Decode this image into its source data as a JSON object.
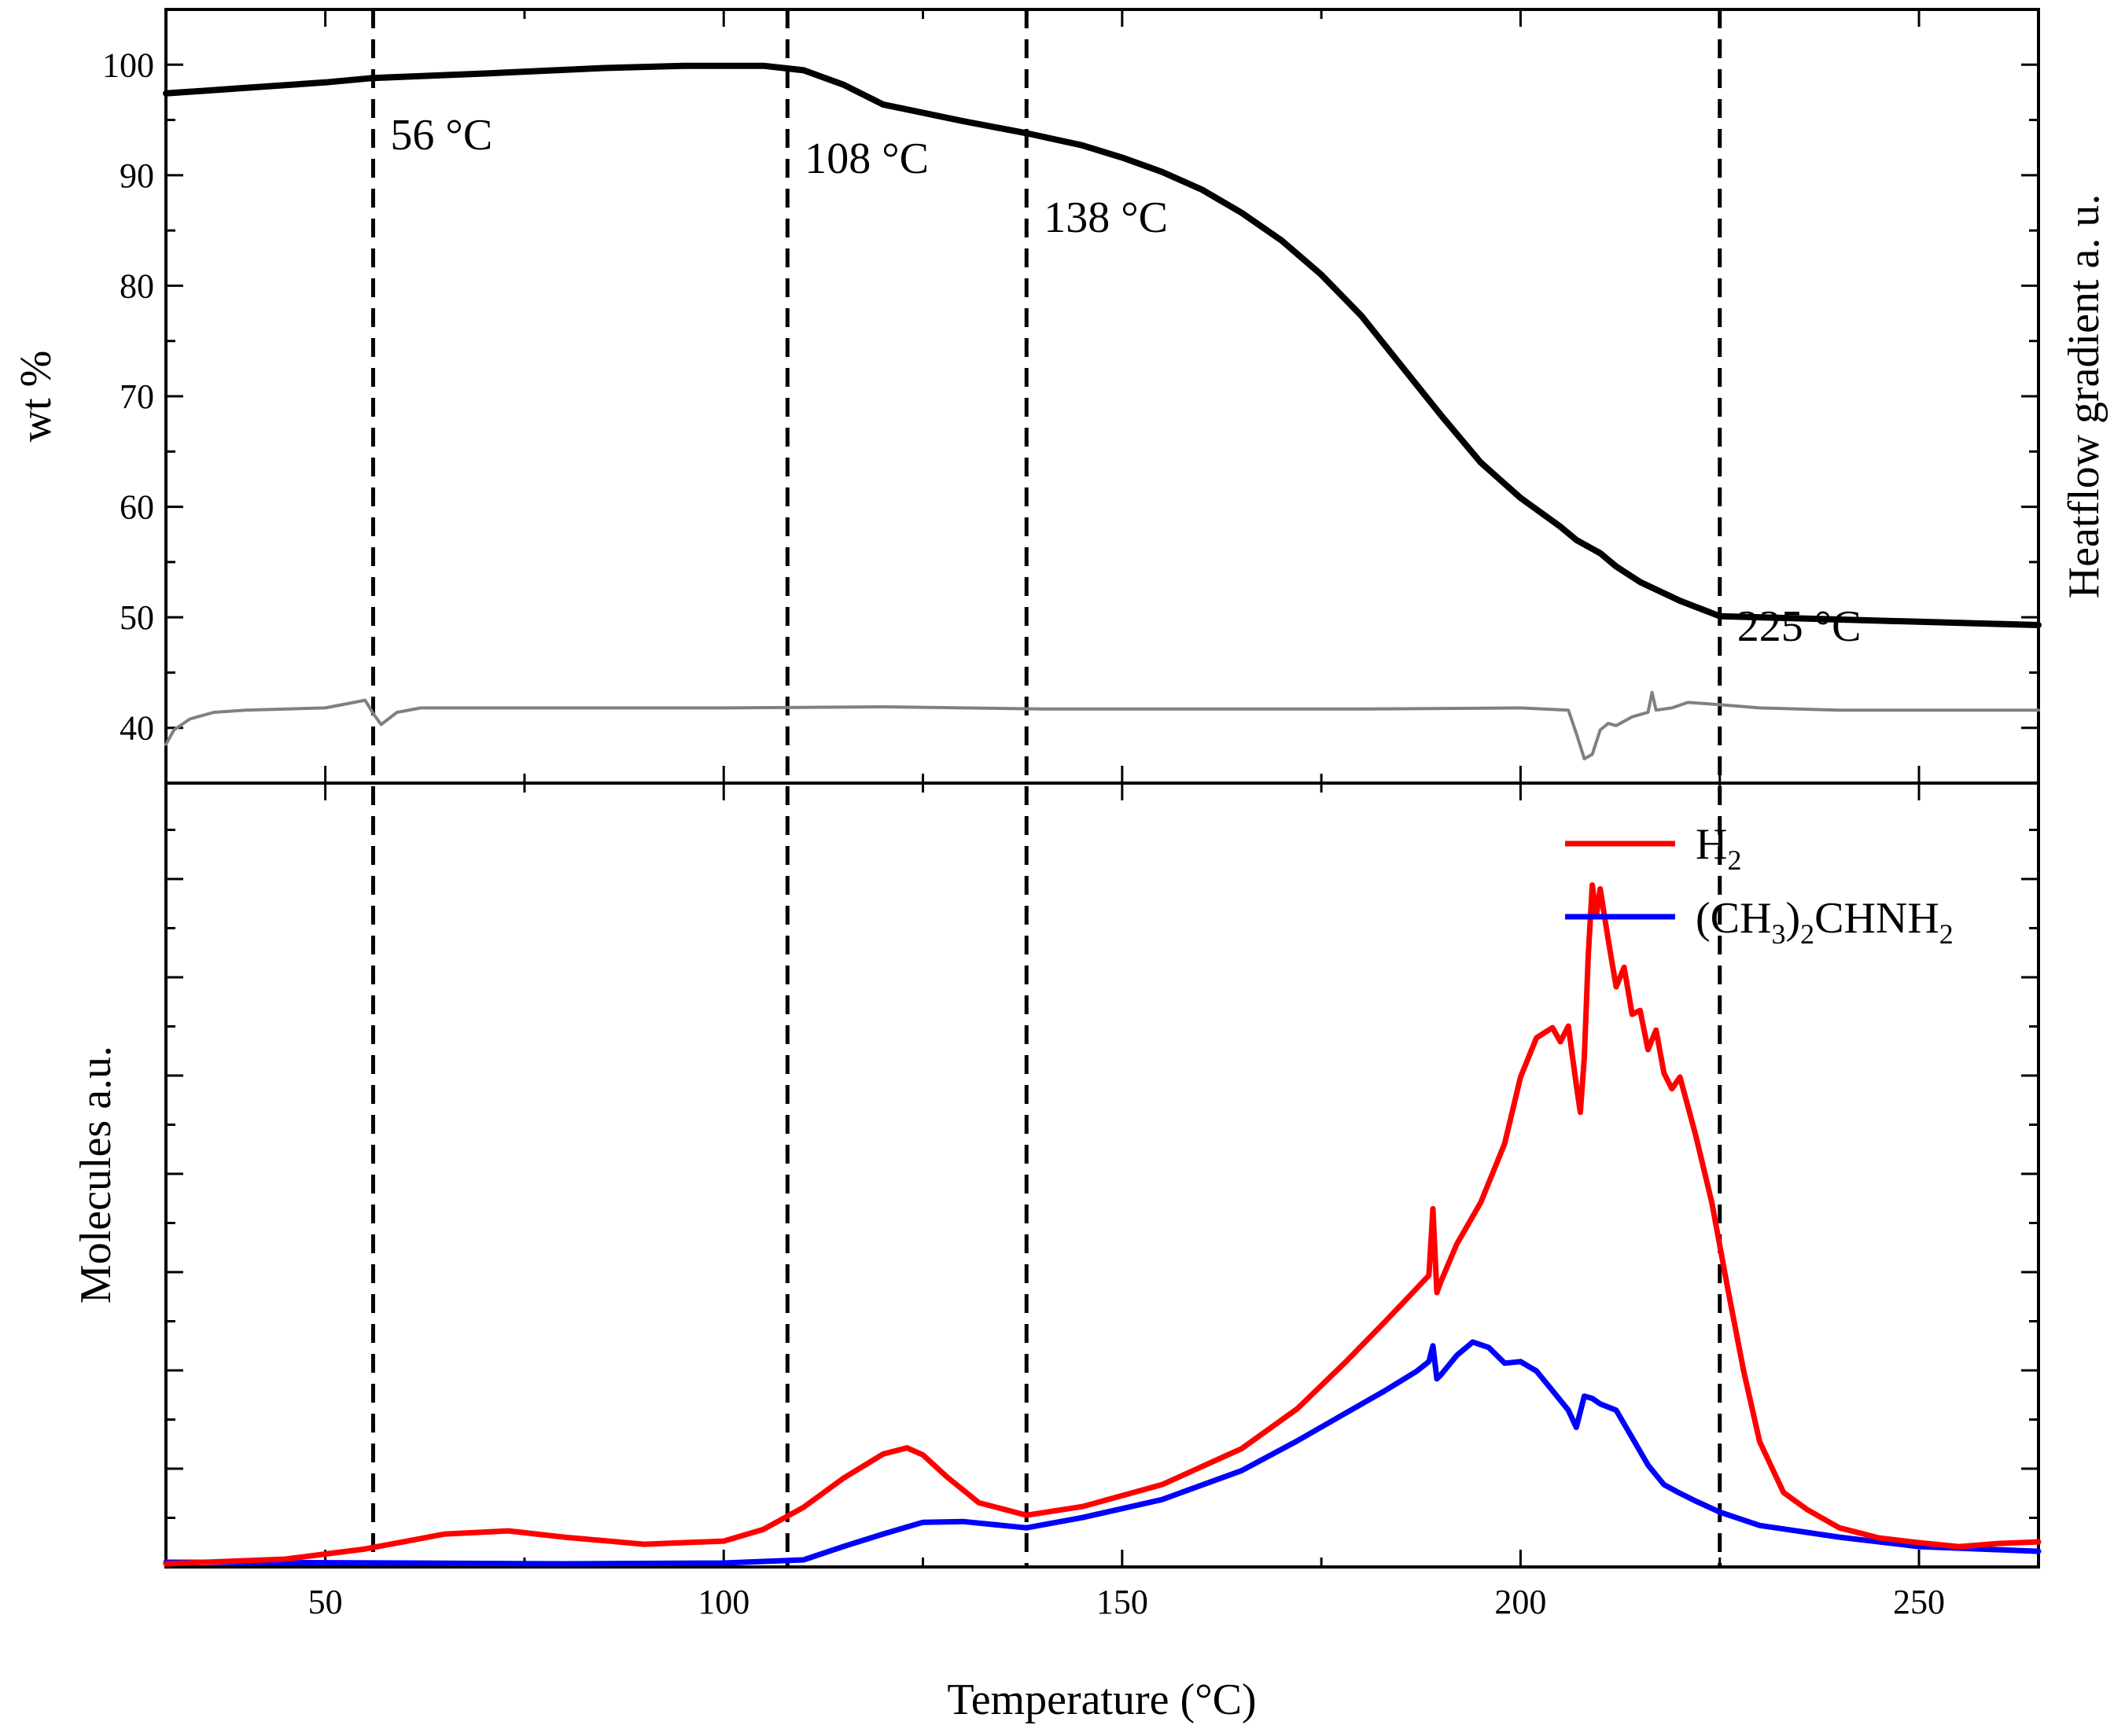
{
  "chart_data": [
    {
      "panel": "top",
      "type": "line",
      "xlabel": "Temperature (°C)",
      "ylabel": "wt %",
      "y2label": "Heatflow gradient a. u.",
      "xlim": [
        30,
        265
      ],
      "ylim": [
        35,
        105
      ],
      "xticks": [
        50,
        100,
        150,
        200,
        250
      ],
      "yticks": [
        40,
        50,
        60,
        70,
        80,
        90,
        100
      ],
      "series": [
        {
          "name": "wt %",
          "color": "#000000",
          "x": [
            30,
            40,
            50,
            56,
            70,
            85,
            95,
            105,
            110,
            115,
            120,
            130,
            138,
            145,
            150,
            155,
            160,
            165,
            170,
            175,
            180,
            185,
            190,
            195,
            200,
            205,
            207,
            210,
            212,
            215,
            220,
            225,
            235,
            250,
            265
          ],
          "y": [
            97.4,
            97.9,
            98.4,
            98.8,
            99.2,
            99.7,
            99.9,
            99.9,
            99.5,
            98.2,
            96.4,
            94.9,
            93.8,
            92.7,
            91.6,
            90.3,
            88.7,
            86.6,
            84.1,
            81.0,
            77.3,
            72.8,
            68.3,
            64.0,
            60.8,
            58.2,
            57.0,
            55.8,
            54.6,
            53.2,
            51.5,
            50.1,
            49.9,
            49.6,
            49.3
          ]
        },
        {
          "name": "Heatflow gradient",
          "color": "#808080",
          "x": [
            30,
            31,
            33,
            36,
            40,
            50,
            55,
            56,
            57,
            59,
            62,
            80,
            100,
            120,
            140,
            160,
            180,
            200,
            206,
            207,
            208,
            209,
            210,
            211,
            212,
            214,
            216,
            216.5,
            217,
            219,
            221,
            225,
            230,
            240,
            265
          ],
          "y": [
            38.5,
            39.8,
            40.8,
            41.4,
            41.6,
            41.8,
            42.5,
            41.3,
            40.3,
            41.4,
            41.8,
            41.8,
            41.8,
            41.9,
            41.7,
            41.7,
            41.7,
            41.8,
            41.6,
            39.5,
            37.2,
            37.6,
            39.8,
            40.4,
            40.2,
            41.0,
            41.4,
            43.2,
            41.6,
            41.8,
            42.3,
            42.1,
            41.8,
            41.6,
            41.6
          ]
        }
      ]
    },
    {
      "panel": "bottom",
      "type": "line",
      "xlabel": "Temperature (°C)",
      "ylabel": "Molecules a.u.",
      "xlim": [
        30,
        265
      ],
      "ylim": [
        0,
        100
      ],
      "xticks": [
        50,
        100,
        150,
        200,
        250
      ],
      "legend_position": "top-right",
      "series": [
        {
          "name": "H",
          "sub": "2",
          "color": "#ff0000",
          "x": [
            30,
            45,
            55,
            65,
            73,
            80,
            90,
            100,
            105,
            110,
            115,
            120,
            123,
            125,
            128,
            132,
            138,
            145,
            155,
            165,
            172,
            178,
            183,
            186,
            188.5,
            189,
            189.5,
            190,
            192,
            195,
            198,
            200,
            202,
            204,
            205,
            206,
            207,
            207.5,
            208,
            208.5,
            209,
            209.5,
            210,
            211,
            212,
            213,
            214,
            215,
            216,
            217,
            218,
            219,
            220,
            222,
            224,
            226,
            228,
            230,
            233,
            236,
            240,
            245,
            250,
            255,
            260,
            265
          ],
          "y": [
            0.4,
            1.0,
            2.3,
            4.2,
            4.6,
            3.8,
            2.9,
            3.3,
            4.8,
            7.6,
            11.3,
            14.4,
            15.2,
            14.3,
            11.5,
            8.2,
            6.6,
            7.7,
            10.5,
            15.1,
            20.2,
            26.1,
            31.3,
            34.5,
            37.2,
            45.7,
            35.0,
            36.4,
            41.2,
            46.5,
            54.0,
            62.5,
            67.5,
            68.8,
            67.0,
            69.0,
            61.5,
            58.0,
            65.0,
            78.0,
            87.0,
            83.0,
            86.5,
            80.0,
            74.0,
            76.5,
            70.5,
            71.0,
            66.0,
            68.5,
            63.0,
            61.0,
            62.5,
            55.0,
            46.5,
            35.5,
            25.0,
            16.0,
            9.5,
            7.3,
            5.0,
            3.7,
            3.1,
            2.6,
            3.0,
            3.2
          ]
        },
        {
          "name": "(CH",
          "sub": "3",
          "name2": ")",
          "sub2": "2",
          "name3": "CHNH",
          "sub3": "2",
          "color": "#0000ff",
          "x": [
            30,
            60,
            80,
            100,
            110,
            115,
            120,
            125,
            130,
            138,
            145,
            155,
            165,
            172,
            178,
            183,
            187,
            188.5,
            189,
            189.5,
            190,
            192,
            194,
            196,
            198,
            200,
            202,
            204,
            206,
            207,
            208,
            209,
            210,
            212,
            214,
            216,
            218,
            220,
            222,
            225,
            230,
            240,
            250,
            265
          ],
          "y": [
            0.6,
            0.5,
            0.4,
            0.5,
            0.9,
            2.6,
            4.2,
            5.7,
            5.8,
            5.0,
            6.3,
            8.6,
            12.3,
            16.1,
            19.6,
            22.5,
            25.0,
            26.2,
            28.2,
            24.0,
            24.5,
            27.0,
            28.7,
            28.0,
            26.0,
            26.2,
            25.0,
            22.5,
            20.0,
            17.8,
            21.8,
            21.5,
            20.8,
            20.0,
            16.5,
            13.0,
            10.5,
            9.4,
            8.4,
            7.0,
            5.3,
            3.8,
            2.6,
            2.0
          ]
        }
      ]
    }
  ],
  "vlines": [
    {
      "x": 56,
      "label": "56 °C"
    },
    {
      "x": 108,
      "label": "108 °C"
    },
    {
      "x": 138,
      "label": "138 °C"
    },
    {
      "x": 225,
      "label": "225 °C"
    }
  ]
}
